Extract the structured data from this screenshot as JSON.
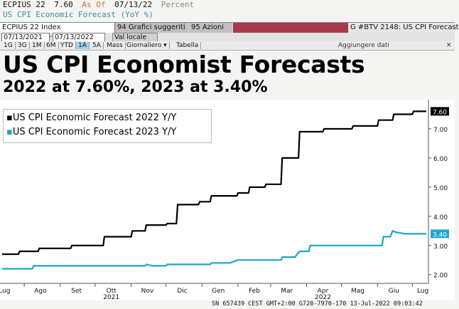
{
  "top_bar": {
    "ticker": "ECPIUS 22",
    "value": "7.60",
    "as_of_label": "As Of",
    "as_of_date": "07/13/22",
    "unit": "Percent"
  },
  "subtitle_line": "US CPI Economic Forecast (YoY %)",
  "toolbar": {
    "ticker_field": "ECPIUS 22 Index",
    "charts_button": "94 Grafici suggeriti",
    "actions_button": "95 Azioni",
    "title_field": "G #BTV 2148: US CPI Forecast"
  },
  "dates": {
    "start": "07/13/2021",
    "end": "07/13/2022",
    "currency": "Val locale"
  },
  "range_buttons": [
    "1G",
    "3G",
    "1M",
    "6M",
    "YTD",
    "1A",
    "5A",
    "Mass",
    "Giornaliero",
    "Tabella"
  ],
  "range_active": "1A",
  "add_data": "Aggiungere dati",
  "main_title": "US CPI Economist Forecasts",
  "sub_title": "2022 at 7.60%, 2023 at 3.40%",
  "footer": "SN 657439 CEST GMT+2:00 G720-7970-170 13-Jul-2022 09:03:42",
  "chart_data": {
    "type": "line",
    "x_tick_labels": [
      "Lug",
      "Ago",
      "Set",
      "Ott",
      "Nov",
      "Dic",
      "Gen",
      "Feb",
      "Mar",
      "Apr",
      "Mag",
      "Giu",
      "Lug"
    ],
    "year_labels": [
      {
        "label": "2021",
        "at": "Ott"
      },
      {
        "label": "2022",
        "at": "Apr"
      }
    ],
    "y_ticks": [
      "2.00",
      "3.00",
      "4.00",
      "5.00",
      "6.00",
      "7.00"
    ],
    "ylim": [
      1.7,
      8.0
    ],
    "xlim": [
      "2021-07-13",
      "2022-07-13"
    ],
    "grid": false,
    "legend_position": "top-left",
    "series": [
      {
        "name": "US CPI Economic Forecast 2022 Y/Y",
        "color": "#000000",
        "last_value_label": "7.60",
        "points": [
          [
            "2021-07-13",
            2.7
          ],
          [
            "2021-07-27",
            2.7
          ],
          [
            "2021-07-28",
            2.8
          ],
          [
            "2021-08-13",
            2.8
          ],
          [
            "2021-08-14",
            2.9
          ],
          [
            "2021-09-10",
            2.9
          ],
          [
            "2021-09-11",
            3.0
          ],
          [
            "2021-10-08",
            3.0
          ],
          [
            "2021-10-09",
            3.3
          ],
          [
            "2021-11-01",
            3.3
          ],
          [
            "2021-11-02",
            3.5
          ],
          [
            "2021-11-13",
            3.5
          ],
          [
            "2021-11-14",
            3.7
          ],
          [
            "2021-12-01",
            3.7
          ],
          [
            "2021-12-02",
            3.75
          ],
          [
            "2021-12-10",
            3.75
          ],
          [
            "2021-12-11",
            4.4
          ],
          [
            "2021-12-29",
            4.4
          ],
          [
            "2021-12-30",
            4.5
          ],
          [
            "2022-01-08",
            4.5
          ],
          [
            "2022-01-09",
            4.7
          ],
          [
            "2022-01-31",
            4.7
          ],
          [
            "2022-02-01",
            4.8
          ],
          [
            "2022-02-10",
            4.8
          ],
          [
            "2022-02-11",
            5.0
          ],
          [
            "2022-02-24",
            5.0
          ],
          [
            "2022-02-25",
            5.1
          ],
          [
            "2022-03-10",
            5.1
          ],
          [
            "2022-03-11",
            6.0
          ],
          [
            "2022-03-25",
            6.0
          ],
          [
            "2022-03-26",
            6.9
          ],
          [
            "2022-04-15",
            6.9
          ],
          [
            "2022-04-16",
            7.0
          ],
          [
            "2022-05-10",
            7.0
          ],
          [
            "2022-05-11",
            7.1
          ],
          [
            "2022-06-01",
            7.1
          ],
          [
            "2022-06-02",
            7.3
          ],
          [
            "2022-06-14",
            7.3
          ],
          [
            "2022-06-15",
            7.5
          ],
          [
            "2022-07-01",
            7.5
          ],
          [
            "2022-07-02",
            7.6
          ],
          [
            "2022-07-13",
            7.6
          ]
        ]
      },
      {
        "name": "US CPI Economic Forecast 2023 Y/Y",
        "color": "#1ba6c8",
        "last_value_label": "3.40",
        "points": [
          [
            "2021-07-13",
            2.2
          ],
          [
            "2021-08-08",
            2.2
          ],
          [
            "2021-08-09",
            2.3
          ],
          [
            "2021-11-13",
            2.3
          ],
          [
            "2021-11-14",
            2.35
          ],
          [
            "2021-11-20",
            2.3
          ],
          [
            "2021-12-01",
            2.3
          ],
          [
            "2021-12-02",
            2.35
          ],
          [
            "2022-01-08",
            2.35
          ],
          [
            "2022-01-09",
            2.4
          ],
          [
            "2022-01-25",
            2.4
          ],
          [
            "2022-02-01",
            2.5
          ],
          [
            "2022-03-10",
            2.5
          ],
          [
            "2022-03-11",
            2.6
          ],
          [
            "2022-03-22",
            2.6
          ],
          [
            "2022-03-26",
            2.8
          ],
          [
            "2022-04-03",
            2.8
          ],
          [
            "2022-04-04",
            3.0
          ],
          [
            "2022-06-05",
            3.0
          ],
          [
            "2022-06-06",
            3.3
          ],
          [
            "2022-06-12",
            3.3
          ],
          [
            "2022-06-14",
            3.5
          ],
          [
            "2022-06-17",
            3.45
          ],
          [
            "2022-06-25",
            3.4
          ],
          [
            "2022-07-13",
            3.4
          ]
        ]
      }
    ]
  }
}
